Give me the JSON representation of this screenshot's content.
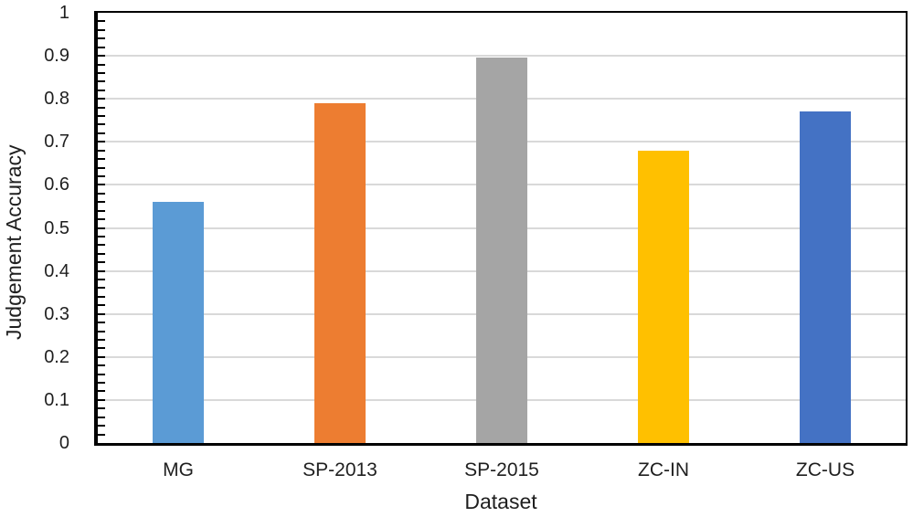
{
  "chart_data": {
    "type": "bar",
    "title": "",
    "xlabel": "Dataset",
    "ylabel": "Judgement Accuracy",
    "categories": [
      "MG",
      "SP-2013",
      "SP-2015",
      "ZC-IN",
      "ZC-US"
    ],
    "values": [
      0.56,
      0.79,
      0.895,
      0.68,
      0.77
    ],
    "bar_colors": [
      "#5B9BD5",
      "#ED7D31",
      "#A5A5A5",
      "#FFC000",
      "#4472C4"
    ],
    "ylim": [
      0,
      1
    ],
    "ytick_labels": [
      "0",
      "0.1",
      "0.2",
      "0.3",
      "0.4",
      "0.5",
      "0.6",
      "0.7",
      "0.8",
      "0.9",
      "1"
    ],
    "ytick_step": 0.1,
    "minor_tick_step": 0.02,
    "grid": true,
    "gridline_color": "#D9D9D9",
    "axis_color": "#000000",
    "text_color": "#1F1F1F",
    "background_color": "#FFFFFF",
    "legend": "none"
  }
}
